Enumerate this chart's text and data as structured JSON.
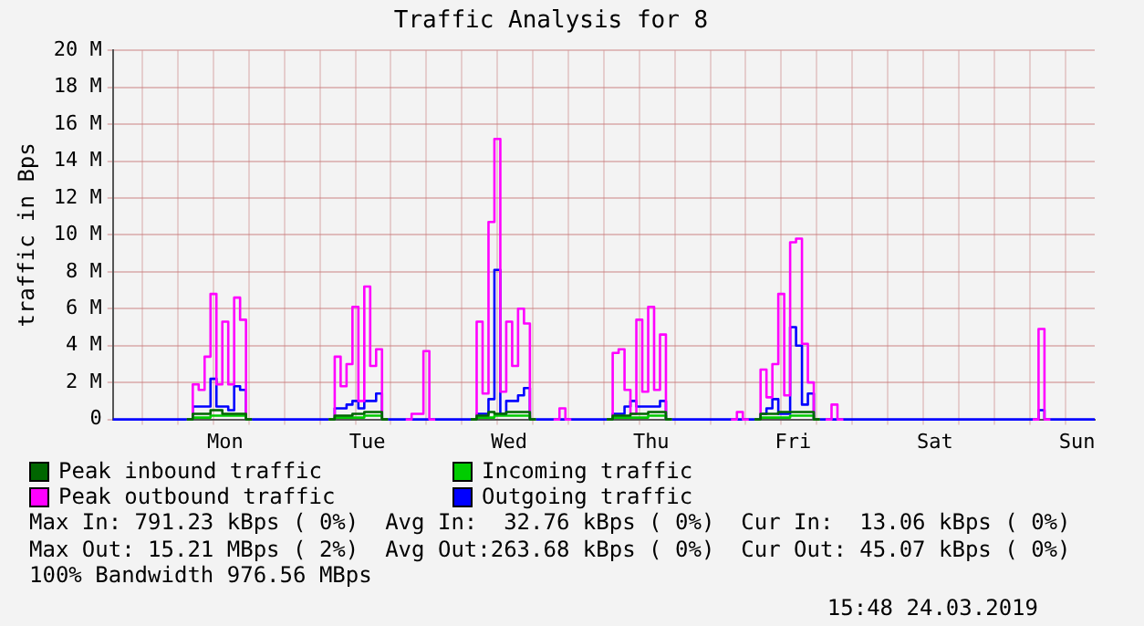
{
  "chart_data": {
    "type": "step",
    "title": "Traffic Analysis for 8",
    "ylabel": "traffic in Bps",
    "categories": [
      null,
      null,
      null,
      null,
      null,
      null,
      null,
      null,
      null,
      null,
      null,
      null,
      null,
      null,
      null,
      null,
      null,
      null,
      null,
      "Mon",
      null,
      null,
      null,
      null,
      null,
      null,
      null,
      null,
      null,
      null,
      null,
      null,
      null,
      null,
      null,
      null,
      null,
      null,
      null,
      null,
      null,
      null,
      null,
      "Tue",
      null,
      null,
      null,
      null,
      null,
      null,
      null,
      null,
      null,
      null,
      null,
      null,
      null,
      null,
      null,
      null,
      null,
      null,
      null,
      null,
      null,
      null,
      null,
      "Wed",
      null,
      null,
      null,
      null,
      null,
      null,
      null,
      null,
      null,
      null,
      null,
      null,
      null,
      null,
      null,
      null,
      null,
      null,
      null,
      null,
      null,
      null,
      null,
      "Thu",
      null,
      null,
      null,
      null,
      null,
      null,
      null,
      null,
      null,
      null,
      null,
      null,
      null,
      null,
      null,
      null,
      null,
      null,
      null,
      null,
      null,
      null,
      null,
      "Fri",
      null,
      null,
      null,
      null,
      null,
      null,
      null,
      null,
      null,
      null,
      null,
      null,
      null,
      null,
      null,
      null,
      null,
      null,
      null,
      null,
      null,
      null,
      null,
      "Sat",
      null,
      null,
      null,
      null,
      null,
      null,
      null,
      null,
      null,
      null,
      null,
      null,
      null,
      null,
      null,
      null,
      null,
      null,
      null,
      null,
      null,
      null,
      null,
      "Sun",
      null,
      null,
      null
    ],
    "ylim": [
      0,
      20
    ],
    "yticks": [
      0,
      {
        "value": 2,
        "label": "2 M"
      },
      {
        "value": 4,
        "label": "4 M"
      },
      {
        "value": 6,
        "label": "6 M"
      },
      {
        "value": 8,
        "label": "8 M"
      },
      {
        "value": 10,
        "label": "10 M"
      },
      {
        "value": 12,
        "label": "12 M"
      },
      {
        "value": 14,
        "label": "14 M"
      },
      {
        "value": 16,
        "label": "16 M"
      },
      {
        "value": 18,
        "label": "18 M"
      },
      {
        "value": 20,
        "label": "20 M"
      }
    ],
    "grid": true,
    "legend": "bottom",
    "series": [
      {
        "name": "Peak inbound traffic",
        "color": "#006600",
        "values": [
          null,
          null,
          null,
          null,
          null,
          null,
          null,
          null,
          null,
          null,
          null,
          null,
          null,
          0,
          0.3,
          0.3,
          0.3,
          0.5,
          0.5,
          0.3,
          0.3,
          0.3,
          0.3,
          0,
          null,
          null,
          null,
          null,
          null,
          null,
          null,
          null,
          null,
          null,
          null,
          null,
          null,
          0,
          0.2,
          0.2,
          0.2,
          0.3,
          0.3,
          0.4,
          0.4,
          0.4,
          0,
          null,
          null,
          null,
          null,
          null,
          null,
          null,
          null,
          null,
          null,
          null,
          null,
          null,
          null,
          0,
          0.2,
          0.2,
          0.4,
          0.3,
          0.3,
          0.4,
          0.4,
          0.4,
          0.4,
          0,
          null,
          null,
          null,
          null,
          null,
          null,
          null,
          null,
          null,
          null,
          null,
          null,
          0,
          0.2,
          0.2,
          0.2,
          0.3,
          0.3,
          0.3,
          0.4,
          0.4,
          0.4,
          0,
          null,
          null,
          null,
          null,
          null,
          null,
          null,
          null,
          null,
          null,
          null,
          null,
          null,
          null,
          0,
          0.3,
          0.3,
          0.3,
          0.4,
          0.4,
          0.4,
          0.4,
          0.4,
          0.4,
          0,
          null,
          null,
          null,
          null,
          null,
          null,
          null,
          null,
          null,
          null,
          null,
          null,
          null,
          null,
          null,
          null,
          null,
          null,
          null,
          null,
          null,
          null,
          null,
          null,
          null,
          null,
          null,
          null,
          null,
          null,
          null,
          null,
          null,
          null,
          null,
          null,
          null,
          null,
          null,
          null,
          null,
          null,
          null,
          null,
          null,
          null,
          null
        ]
      },
      {
        "name": "Incoming traffic",
        "color": "#00cc00",
        "values": [
          null,
          null,
          null,
          null,
          null,
          null,
          null,
          null,
          null,
          null,
          null,
          null,
          null,
          0,
          0.1,
          0.1,
          0.1,
          0.2,
          0.2,
          0.2,
          0.2,
          0.2,
          0.2,
          0,
          null,
          null,
          null,
          null,
          null,
          null,
          null,
          null,
          null,
          null,
          null,
          null,
          null,
          0,
          0.1,
          0.1,
          0.1,
          0.1,
          0.1,
          0.2,
          0.2,
          0.2,
          0,
          null,
          null,
          null,
          null,
          null,
          null,
          null,
          null,
          null,
          null,
          null,
          null,
          null,
          null,
          0,
          0.1,
          0.1,
          0.1,
          0.2,
          0.2,
          0.2,
          0.2,
          0.2,
          0.2,
          0,
          null,
          null,
          null,
          null,
          null,
          null,
          null,
          null,
          null,
          null,
          null,
          null,
          0,
          0.1,
          0.1,
          0.1,
          0.1,
          0.1,
          0.1,
          0.2,
          0.2,
          0.2,
          0,
          null,
          null,
          null,
          null,
          null,
          null,
          null,
          null,
          null,
          null,
          null,
          null,
          null,
          null,
          0,
          0.1,
          0.1,
          0.1,
          0.1,
          0.1,
          0.2,
          0.2,
          0.2,
          0.2,
          0,
          null,
          null,
          null,
          null,
          null,
          null,
          null,
          null,
          null,
          null,
          null,
          null,
          null,
          null,
          null,
          null,
          null,
          null,
          null,
          null,
          null,
          null,
          null,
          null,
          null,
          null,
          null,
          null,
          null,
          null,
          null,
          null,
          null,
          null,
          null,
          null,
          null,
          null,
          null,
          null,
          null,
          null,
          null,
          null,
          null,
          null,
          null
        ]
      },
      {
        "name": "Peak outbound traffic",
        "color": "#ff00ff",
        "values": [
          null,
          null,
          null,
          null,
          null,
          null,
          null,
          null,
          null,
          null,
          null,
          null,
          null,
          0,
          1.9,
          1.6,
          3.4,
          6.8,
          1.9,
          5.3,
          1.9,
          6.6,
          5.4,
          0,
          null,
          null,
          null,
          null,
          null,
          null,
          null,
          null,
          null,
          null,
          null,
          null,
          null,
          0,
          3.4,
          1.8,
          3.0,
          6.1,
          1.0,
          7.2,
          2.9,
          3.8,
          0,
          null,
          null,
          null,
          0,
          0.3,
          0.3,
          3.7,
          0,
          null,
          null,
          null,
          null,
          null,
          null,
          0,
          5.3,
          1.4,
          10.7,
          15.2,
          1.5,
          5.3,
          2.9,
          6.0,
          5.2,
          0,
          null,
          null,
          null,
          0,
          0.6,
          0,
          null,
          null,
          null,
          null,
          null,
          null,
          0,
          3.6,
          3.8,
          1.6,
          0.3,
          5.4,
          1.5,
          6.1,
          1.6,
          4.6,
          0,
          null,
          null,
          null,
          null,
          null,
          null,
          null,
          null,
          null,
          null,
          0,
          0.4,
          0,
          null,
          0,
          2.7,
          1.2,
          3.0,
          6.8,
          1.3,
          9.6,
          9.8,
          4.1,
          2.0,
          0,
          null,
          0,
          0.8,
          0,
          null,
          null,
          null,
          null,
          null,
          null,
          null,
          null,
          null,
          null,
          null,
          null,
          null,
          null,
          null,
          null,
          null,
          null,
          null,
          null,
          null,
          null,
          null,
          null,
          null,
          null,
          null,
          null,
          null,
          null,
          null,
          null,
          0,
          4.9,
          0,
          null,
          null,
          null,
          null,
          null,
          null,
          null,
          null
        ]
      },
      {
        "name": "Outgoing traffic",
        "color": "#0000ff",
        "values": [
          0,
          0,
          0,
          0,
          0,
          0,
          0,
          0,
          0,
          0,
          0,
          0,
          0,
          0,
          0.7,
          0.7,
          0.7,
          2.2,
          0.7,
          0.7,
          0.5,
          1.8,
          1.6,
          0,
          0,
          0,
          0,
          0,
          0,
          0,
          0,
          0,
          0,
          0,
          0,
          0,
          0,
          0,
          0.6,
          0.6,
          0.8,
          1.0,
          0.6,
          1.0,
          1.0,
          1.4,
          0,
          0,
          0,
          0,
          0,
          0,
          0,
          0,
          0,
          0,
          0,
          0,
          0,
          0,
          0,
          0,
          0.3,
          0.3,
          1.1,
          8.1,
          0.3,
          1.0,
          1.0,
          1.3,
          1.7,
          0,
          0,
          0,
          0,
          0,
          0,
          0,
          0,
          0,
          0,
          0,
          0,
          0,
          0,
          0.3,
          0.3,
          0.7,
          1.0,
          0.7,
          0.7,
          0.7,
          0.7,
          1.0,
          0,
          0,
          0,
          0,
          0,
          0,
          0,
          0,
          0,
          0,
          0,
          0,
          0,
          0,
          0,
          0,
          0.3,
          0.6,
          1.1,
          0.3,
          0.3,
          5.0,
          4.0,
          0.8,
          1.4,
          0,
          0,
          0,
          0,
          0,
          0,
          0,
          0,
          0,
          0,
          0,
          0,
          0,
          0,
          0,
          0,
          0,
          0,
          0,
          0,
          0,
          0,
          0,
          0,
          0,
          0,
          0,
          0,
          0,
          0,
          0,
          0,
          0,
          0,
          0,
          0,
          0,
          0,
          0.5,
          0,
          0,
          0,
          0,
          0,
          0,
          0,
          0,
          0
        ]
      }
    ],
    "annotations": [
      "Max In: 791.23 kBps ( 0%)  Avg In:  32.76 kBps ( 0%)  Cur In:  13.06 kBps ( 0%)",
      "Max Out: 15.21 MBps ( 2%)  Avg Out:263.68 kBps ( 0%)  Cur Out: 45.07 kBps ( 0%)",
      "100% Bandwidth 976.56 MBps",
      "15:48 24.03.2019"
    ]
  }
}
